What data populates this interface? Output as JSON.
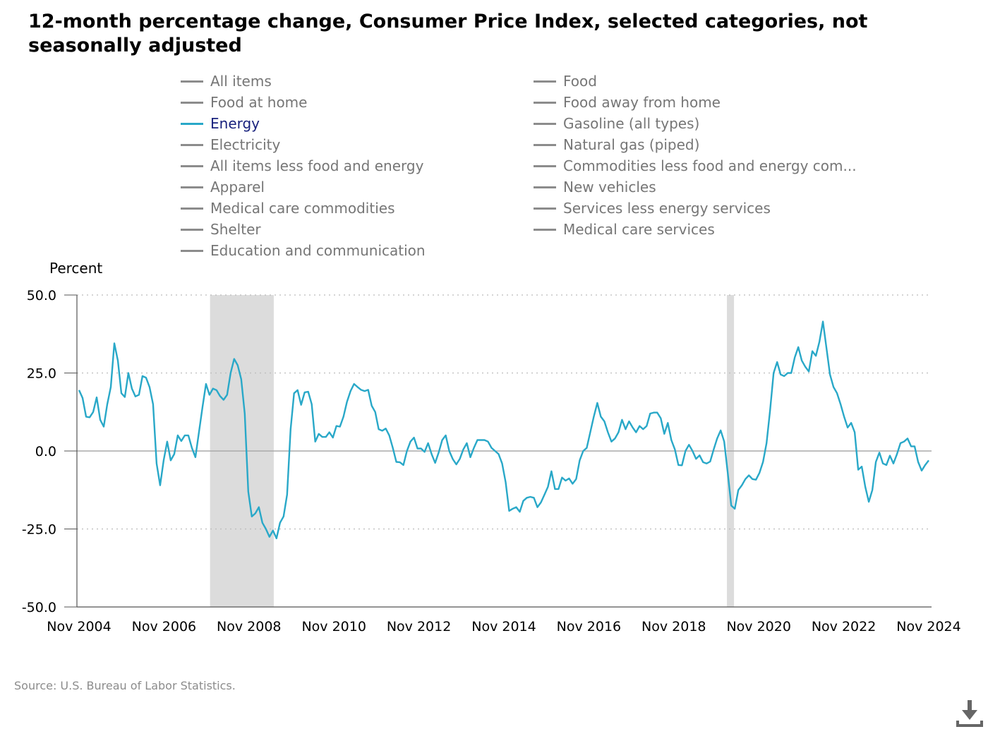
{
  "title": "12-month percentage change, Consumer Price Index, selected categories, not seasonally adjusted",
  "legend": {
    "items": [
      {
        "label": "All items",
        "active": false
      },
      {
        "label": "Food",
        "active": false
      },
      {
        "label": "Food at home",
        "active": false
      },
      {
        "label": "Food away from home",
        "active": false
      },
      {
        "label": "Energy",
        "active": true
      },
      {
        "label": "Gasoline (all types)",
        "active": false
      },
      {
        "label": "Electricity",
        "active": false
      },
      {
        "label": "Natural gas (piped)",
        "active": false
      },
      {
        "label": "All items less food and energy",
        "active": false
      },
      {
        "label": "Commodities less food and energy com...",
        "active": false
      },
      {
        "label": "Apparel",
        "active": false
      },
      {
        "label": "New vehicles",
        "active": false
      },
      {
        "label": "Medical care commodities",
        "active": false
      },
      {
        "label": "Services less energy services",
        "active": false
      },
      {
        "label": "Shelter",
        "active": false
      },
      {
        "label": "Medical care services",
        "active": false
      },
      {
        "label": "Education and communication",
        "active": false
      }
    ]
  },
  "colors": {
    "energy_line": "#29a8c8",
    "inactive_legend": "#8c8c8c",
    "recession_shade": "#dcdcdc"
  },
  "source": "Source: U.S. Bureau of Labor Statistics.",
  "download_icon": "download-icon",
  "chart_data": {
    "type": "line",
    "ylabel": "Percent",
    "ylim": [
      -50,
      50
    ],
    "y_ticks": [
      "50.0",
      "25.0",
      "0.0",
      "-25.0",
      "-50.0"
    ],
    "y_tick_values": [
      50,
      25,
      0,
      -25,
      -50
    ],
    "x_ticks": [
      "Nov 2004",
      "Nov 2006",
      "Nov 2008",
      "Nov 2010",
      "Nov 2012",
      "Nov 2014",
      "Nov 2016",
      "Nov 2018",
      "Nov 2020",
      "Nov 2022",
      "Nov 2024"
    ],
    "x_start": "Nov 2004",
    "x_end": "Nov 2024",
    "grid": "horizontal-dotted",
    "recessions": [
      {
        "start": "Dec 2007",
        "end": "Jun 2009"
      },
      {
        "start": "Feb 2020",
        "end": "Apr 2020"
      }
    ],
    "series": [
      {
        "name": "Energy",
        "values": [
          19.5,
          17,
          11,
          10.8,
          12.5,
          17.2,
          10,
          7.8,
          15,
          20.5,
          34.5,
          29,
          18.5,
          17.3,
          25,
          20,
          17.5,
          18,
          24,
          23.5,
          20.5,
          15,
          -4,
          -11,
          -3,
          3,
          -3,
          -1,
          5,
          3.2,
          5,
          5,
          1,
          -2,
          6,
          14,
          21.5,
          18,
          20,
          19.5,
          17.6,
          16.4,
          18,
          25,
          29.5,
          27.5,
          23,
          12,
          -13,
          -21,
          -20,
          -18,
          -23,
          -25,
          -27.5,
          -25.5,
          -28,
          -23,
          -21,
          -14,
          7,
          18.5,
          19.5,
          14.8,
          18.8,
          19,
          15,
          3,
          5.5,
          4.5,
          4.5,
          6,
          4.3,
          8,
          7.8,
          11,
          15.8,
          19.2,
          21.5,
          20.5,
          19.6,
          19.2,
          19.6,
          14.5,
          12.5,
          7,
          6.5,
          7.2,
          5,
          1,
          -3.5,
          -3.6,
          -4.5,
          0,
          3,
          4.3,
          0.8,
          0.8,
          -0.3,
          2.5,
          -1,
          -3.8,
          -0.5,
          3.5,
          5,
          0,
          -2.6,
          -4.3,
          -2.5,
          0.5,
          2.5,
          -2,
          1,
          3.5,
          3.5,
          3.5,
          3,
          1,
          0,
          -1,
          -4,
          -10,
          -19.2,
          -18.5,
          -18,
          -19.5,
          -16,
          -15,
          -14.7,
          -15,
          -18,
          -16.5,
          -14,
          -11.5,
          -6.5,
          -12.2,
          -12.2,
          -8.5,
          -9.5,
          -8.8,
          -10.5,
          -9,
          -3,
          0,
          1,
          6,
          11,
          15.4,
          11,
          9.5,
          6,
          3,
          4,
          6,
          10,
          7,
          9.5,
          7.6,
          6,
          8,
          7,
          8,
          12,
          12.3,
          12.3,
          10.5,
          5.5,
          9,
          3.5,
          0.5,
          -4.5,
          -4.6,
          0,
          2,
          0,
          -2.5,
          -1.4,
          -3.6,
          -4,
          -3.4,
          0.5,
          4,
          6.6,
          3,
          -7,
          -17.5,
          -18.5,
          -12.5,
          -11,
          -9,
          -7.8,
          -9,
          -9.2,
          -7,
          -3.5,
          2.5,
          13,
          25,
          28.5,
          24.5,
          24,
          25,
          25,
          30,
          33.3,
          29,
          27,
          25.5,
          32,
          30.5,
          35,
          41.5,
          33,
          24.5,
          20.5,
          18.5,
          15,
          11,
          7.5,
          9,
          6,
          -6,
          -5,
          -11.5,
          -16.3,
          -12.5,
          -3.5,
          -0.5,
          -4,
          -4.5,
          -1.5,
          -4,
          -1,
          2.5,
          3,
          4,
          1.5,
          1.5,
          -3.5,
          -6.3,
          -4.5,
          -3
        ]
      }
    ]
  }
}
